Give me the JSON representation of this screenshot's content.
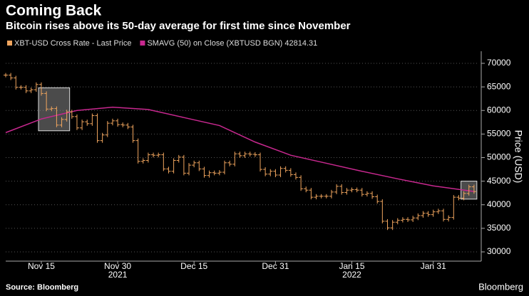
{
  "chart_data": {
    "type": "ohlc_close",
    "title": "Coming Back",
    "subtitle": "Bitcoin rises above its 50-day average for first time since November",
    "ylabel": "Price (USD)",
    "source": "Source: Bloomberg",
    "brand": "Bloomberg",
    "x": [
      "2021-11-08",
      "2021-11-09",
      "2021-11-10",
      "2021-11-11",
      "2021-11-12",
      "2021-11-13",
      "2021-11-14",
      "2021-11-15",
      "2021-11-16",
      "2021-11-17",
      "2021-11-18",
      "2021-11-19",
      "2021-11-20",
      "2021-11-21",
      "2021-11-22",
      "2021-11-23",
      "2021-11-24",
      "2021-11-25",
      "2021-11-26",
      "2021-11-27",
      "2021-11-28",
      "2021-11-29",
      "2021-11-30",
      "2021-12-01",
      "2021-12-02",
      "2021-12-03",
      "2021-12-04",
      "2021-12-05",
      "2021-12-06",
      "2021-12-07",
      "2021-12-08",
      "2021-12-09",
      "2021-12-10",
      "2021-12-11",
      "2021-12-12",
      "2021-12-13",
      "2021-12-14",
      "2021-12-15",
      "2021-12-16",
      "2021-12-17",
      "2021-12-18",
      "2021-12-19",
      "2021-12-20",
      "2021-12-21",
      "2021-12-22",
      "2021-12-23",
      "2021-12-24",
      "2021-12-25",
      "2021-12-26",
      "2021-12-27",
      "2021-12-28",
      "2021-12-29",
      "2021-12-30",
      "2021-12-31",
      "2022-01-01",
      "2022-01-02",
      "2022-01-03",
      "2022-01-04",
      "2022-01-05",
      "2022-01-06",
      "2022-01-07",
      "2022-01-08",
      "2022-01-09",
      "2022-01-10",
      "2022-01-11",
      "2022-01-12",
      "2022-01-13",
      "2022-01-14",
      "2022-01-15",
      "2022-01-16",
      "2022-01-17",
      "2022-01-18",
      "2022-01-19",
      "2022-01-20",
      "2022-01-21",
      "2022-01-22",
      "2022-01-23",
      "2022-01-24",
      "2022-01-25",
      "2022-01-26",
      "2022-01-27",
      "2022-01-28",
      "2022-01-29",
      "2022-01-30",
      "2022-01-31",
      "2022-02-01",
      "2022-02-02",
      "2022-02-03",
      "2022-02-04",
      "2022-02-05",
      "2022-02-06",
      "2022-02-07",
      "2022-02-08"
    ],
    "series": [
      {
        "name": "XBT-USD Cross Rate - Last Price",
        "color": "#f0a55e",
        "values": [
          67500,
          66900,
          64900,
          64900,
          64150,
          64400,
          65500,
          63600,
          60300,
          60400,
          56900,
          58100,
          59700,
          58700,
          56300,
          57600,
          57200,
          58900,
          53600,
          54800,
          57300,
          57800,
          57000,
          56900,
          56500,
          53600,
          49200,
          49400,
          50600,
          50500,
          50600,
          47600,
          47100,
          49400,
          50100,
          46700,
          48400,
          48900,
          47600,
          46200,
          46800,
          46700,
          46900,
          48900,
          48600,
          50800,
          50400,
          50800,
          50700,
          50600,
          47500,
          46500,
          47100,
          46300,
          47700,
          47300,
          46400,
          45800,
          43400,
          43100,
          41600,
          41800,
          41800,
          41800,
          42700,
          43900,
          42600,
          43100,
          43200,
          43100,
          42200,
          42400,
          41700,
          40700,
          36500,
          35100,
          36300,
          36700,
          36900,
          36800,
          37200,
          37700,
          38200,
          37900,
          38500,
          38700,
          36900,
          37300,
          41600,
          41400,
          42400,
          43800,
          42800
        ]
      },
      {
        "name": "SMAVG (50)  on Close (XBTUSD BGN) 42814.31",
        "color": "#c8288f",
        "x": [
          "2021-11-08",
          "2021-11-15",
          "2021-11-22",
          "2021-11-29",
          "2021-12-06",
          "2021-12-13",
          "2021-12-20",
          "2021-12-27",
          "2022-01-03",
          "2022-01-10",
          "2022-01-17",
          "2022-01-24",
          "2022-01-31",
          "2022-02-08"
        ],
        "values": [
          55300,
          58200,
          60000,
          60700,
          60200,
          58500,
          56800,
          53300,
          50500,
          48800,
          47100,
          45500,
          44000,
          42814
        ]
      }
    ],
    "xlim": [
      "2021-11-08",
      "2022-02-09"
    ],
    "xticks": [
      {
        "value": "2021-11-15",
        "label": "Nov 15"
      },
      {
        "value": "2021-11-30",
        "label": "Nov 30"
      },
      {
        "value": "2021-12-15",
        "label": "Dec 15"
      },
      {
        "value": "2021-12-31",
        "label": "Dec 31"
      },
      {
        "value": "2022-01-15",
        "label": "Jan 15"
      },
      {
        "value": "2022-01-31",
        "label": "Jan 31"
      }
    ],
    "year_labels": [
      {
        "value": "2021-11-30",
        "label": "2021"
      },
      {
        "value": "2022-01-15",
        "label": "2022"
      }
    ],
    "ylim": [
      28000,
      72000
    ],
    "yticks": [
      30000,
      35000,
      40000,
      45000,
      50000,
      55000,
      60000,
      65000,
      70000
    ],
    "grid": true
  }
}
